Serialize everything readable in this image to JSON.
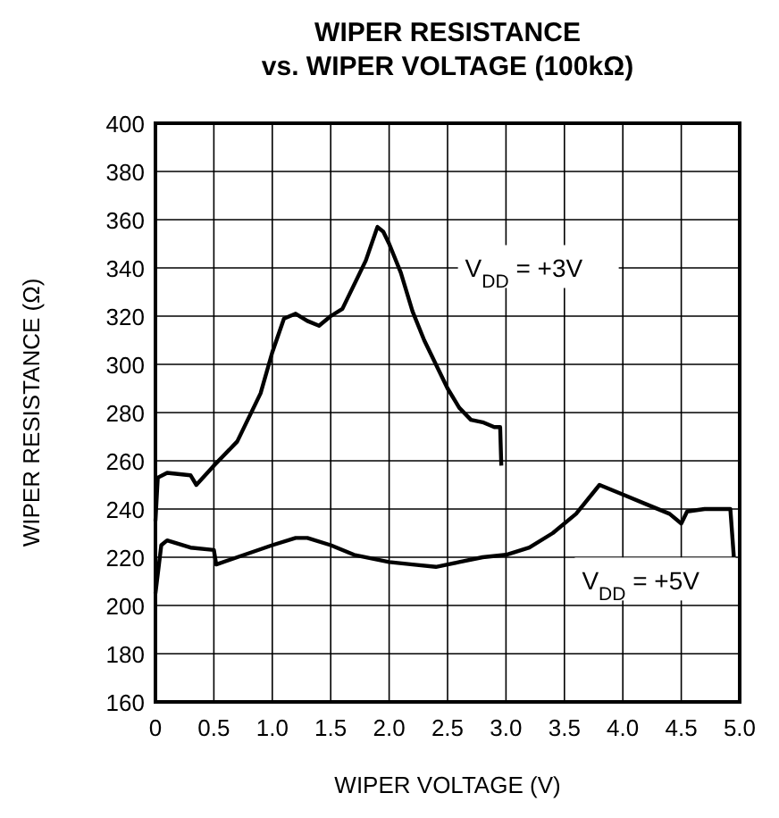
{
  "chart_data": {
    "type": "line",
    "title": "WIPER RESISTANCE\nvs. WIPER VOLTAGE (100kΩ)",
    "xlabel": "WIPER VOLTAGE (V)",
    "ylabel": "WIPER RESISTANCE (Ω)",
    "xlim": [
      0,
      5
    ],
    "xticks": [
      {
        "value": 0,
        "label": "0"
      },
      {
        "value": 0.5,
        "label": "0.5"
      },
      {
        "value": 1,
        "label": "1.0"
      },
      {
        "value": 1.5,
        "label": "1.5"
      },
      {
        "value": 2,
        "label": "2.0"
      },
      {
        "value": 2.5,
        "label": "2.5"
      },
      {
        "value": 3,
        "label": "3.0"
      },
      {
        "value": 3.5,
        "label": "3.5"
      },
      {
        "value": 4,
        "label": "4.0"
      },
      {
        "value": 4.5,
        "label": "4.5"
      },
      {
        "value": 5,
        "label": "5.0"
      }
    ],
    "ylim": [
      160,
      400
    ],
    "yticks": [
      160,
      180,
      200,
      220,
      240,
      260,
      280,
      300,
      320,
      340,
      360,
      380,
      400
    ],
    "grid": true,
    "marker": "none",
    "line_style": "solid",
    "series": [
      {
        "name": "V$_{DD}$ = +3V",
        "color": "#000000",
        "x": [
          0,
          0.02,
          0.1,
          0.3,
          0.35,
          0.5,
          0.7,
          0.9,
          1.0,
          1.1,
          1.2,
          1.3,
          1.4,
          1.5,
          1.6,
          1.7,
          1.8,
          1.9,
          1.95,
          2.0,
          2.1,
          2.2,
          2.3,
          2.4,
          2.5,
          2.6,
          2.7,
          2.8,
          2.9,
          2.95,
          2.96
        ],
        "values": [
          235,
          253,
          255,
          254,
          250,
          258,
          268,
          288,
          305,
          319,
          321,
          318,
          316,
          320,
          323,
          333,
          343,
          357,
          355,
          350,
          338,
          322,
          310,
          300,
          290,
          282,
          277,
          276,
          274,
          274,
          258
        ]
      },
      {
        "name": "V$_{DD}$ = +5V",
        "color": "#000000",
        "x": [
          0,
          0.05,
          0.1,
          0.3,
          0.5,
          0.52,
          0.7,
          1.0,
          1.2,
          1.3,
          1.5,
          1.7,
          2.0,
          2.2,
          2.4,
          2.6,
          2.8,
          3.0,
          3.2,
          3.4,
          3.6,
          3.8,
          4.0,
          4.2,
          4.4,
          4.5,
          4.55,
          4.7,
          4.92,
          4.95
        ],
        "values": [
          205,
          225,
          227,
          224,
          223,
          217,
          220,
          225,
          228,
          228,
          225,
          221,
          218,
          217,
          216,
          218,
          220,
          221,
          224,
          230,
          238,
          250,
          246,
          242,
          238,
          234,
          239,
          240,
          240,
          220
        ]
      }
    ]
  }
}
